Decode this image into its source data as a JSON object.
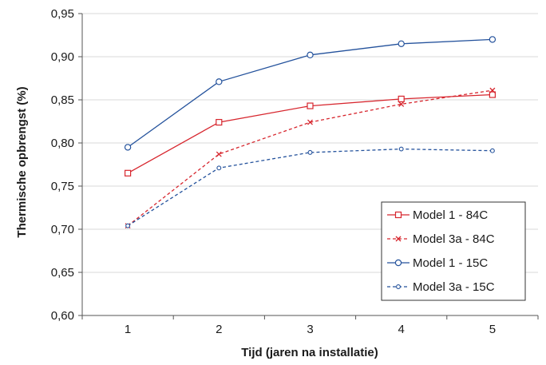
{
  "chart_data": {
    "type": "line",
    "title": "",
    "xlabel": "Tijd (jaren na installatie)",
    "ylabel": "Thermische opbrengst (%)",
    "categories": [
      "1",
      "2",
      "3",
      "4",
      "5"
    ],
    "ylim": [
      0.6,
      0.95
    ],
    "yticks": [
      "0,60",
      "0,65",
      "0,70",
      "0,75",
      "0,80",
      "0,85",
      "0,90",
      "0,95"
    ],
    "grid": "horizontal",
    "legend_position": "bottom-right",
    "series": [
      {
        "name": "Model 1 - 84C",
        "color": "#d7262e",
        "dash": "solid",
        "marker": "square",
        "values": [
          0.765,
          0.824,
          0.843,
          0.851,
          0.856
        ]
      },
      {
        "name": "Model 3a - 84C",
        "color": "#d7262e",
        "dash": "dashed",
        "marker": "x",
        "values": [
          0.704,
          0.787,
          0.824,
          0.845,
          0.861
        ]
      },
      {
        "name": "Model 1 - 15C",
        "color": "#24529c",
        "dash": "solid",
        "marker": "circle",
        "values": [
          0.795,
          0.871,
          0.902,
          0.915,
          0.92
        ]
      },
      {
        "name": "Model 3a - 15C",
        "color": "#24529c",
        "dash": "dashed",
        "marker": "small-circle",
        "values": [
          0.704,
          0.771,
          0.789,
          0.793,
          0.791
        ]
      }
    ]
  }
}
